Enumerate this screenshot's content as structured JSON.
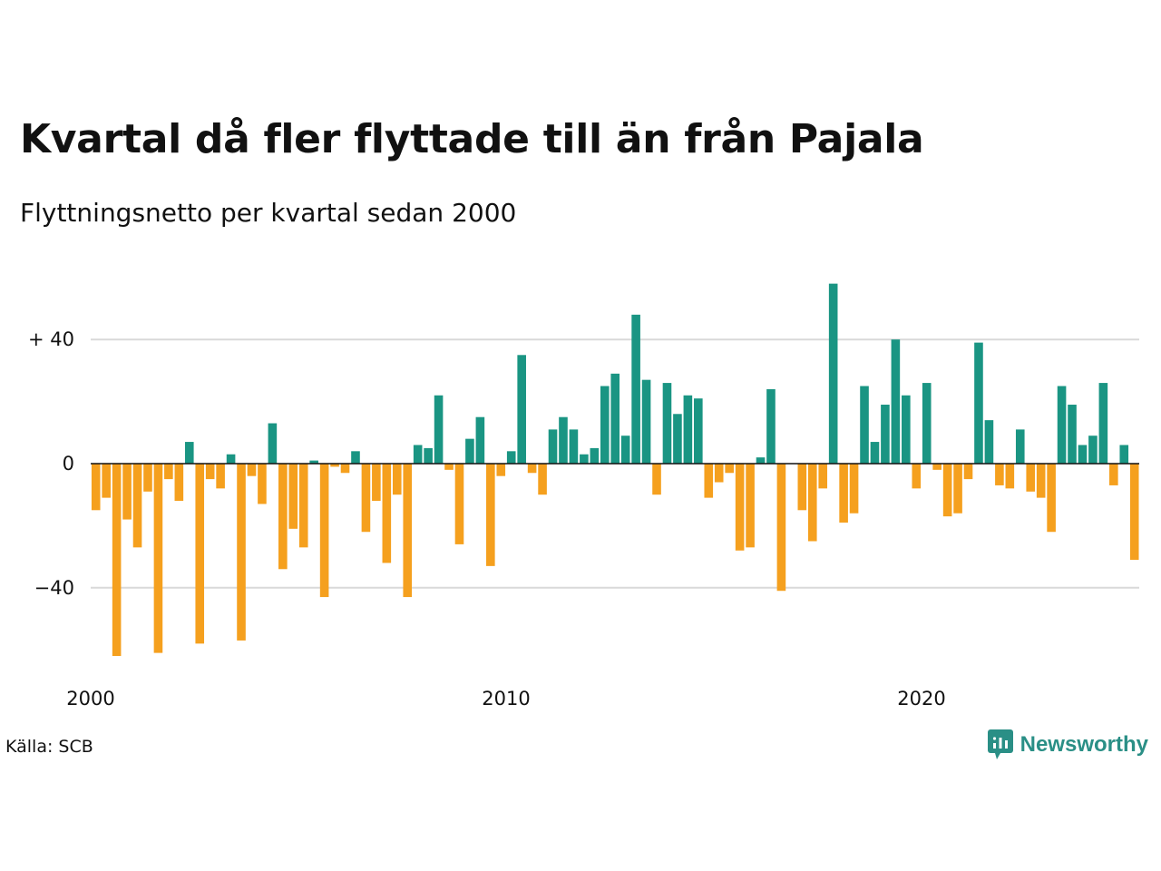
{
  "header": {
    "title": "Kvartal då fler flyttade till än från Pajala",
    "subtitle": "Flyttningsnetto per kvartal sedan 2000"
  },
  "footer": {
    "source": "Källa: SCB",
    "brand": "Newsworthy"
  },
  "colors": {
    "positive": "#1a9583",
    "negative": "#f5a01e",
    "grid": "#d9d9d9",
    "zero_line": "#111111",
    "brand": "#2a8f86"
  },
  "chart_data": {
    "type": "bar",
    "x_start": "2000-Q1",
    "x_tick_labels": [
      "2000",
      "2010",
      "2020"
    ],
    "y_tick_labels": [
      "+ 40",
      "0",
      "−40"
    ],
    "y_ticks": [
      40,
      0,
      -40
    ],
    "ylim": [
      -65,
      60
    ],
    "grid": true,
    "values": [
      -15,
      -11,
      -62,
      -18,
      -27,
      -9,
      -61,
      -5,
      -12,
      7,
      -58,
      -5,
      -8,
      3,
      -57,
      -4,
      -13,
      13,
      -34,
      -21,
      -27,
      1,
      -43,
      -1,
      -3,
      4,
      -22,
      -12,
      -32,
      -10,
      -43,
      6,
      5,
      22,
      -2,
      -26,
      8,
      15,
      -33,
      -4,
      4,
      35,
      -3,
      -10,
      11,
      15,
      11,
      3,
      5,
      25,
      29,
      9,
      48,
      27,
      -10,
      26,
      16,
      22,
      21,
      -11,
      -6,
      -3,
      -28,
      -27,
      2,
      24,
      -41,
      0,
      -15,
      -25,
      -8,
      58,
      -19,
      -16,
      25,
      7,
      19,
      40,
      22,
      -8,
      26,
      -2,
      -17,
      -16,
      -5,
      39,
      14,
      -7,
      -8,
      11,
      -9,
      -11,
      -22,
      25,
      19,
      6,
      9,
      26,
      -7,
      6,
      -31
    ]
  }
}
